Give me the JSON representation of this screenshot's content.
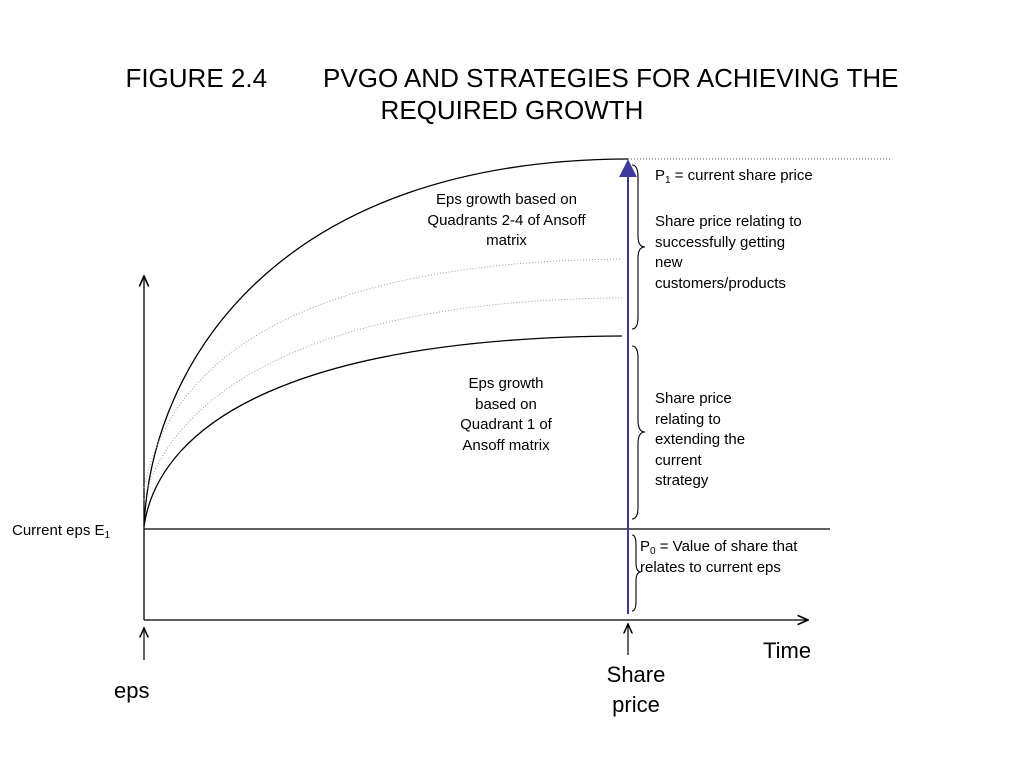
{
  "title": {
    "figure_number": "FIGURE 2.4",
    "line1": "PVGO AND STRATEGIES FOR ACHIEVING THE",
    "line2": "REQUIRED GROWTH"
  },
  "labels": {
    "p1_prefix": "P",
    "p1_sub": "1",
    "p1_rest": " = current share price",
    "quadrants_2_4": "Eps growth based on Quadrants 2-4  of Ansoff matrix",
    "share_price_new": "Share price relating to successfully getting new customers/products",
    "quadrant_1": "Eps growth based on Quadrant 1 of Ansoff matrix",
    "share_price_extend": "Share price relating to extending the current strategy",
    "current_eps_prefix": "Current eps E",
    "current_eps_sub": "1",
    "p0_prefix": "P",
    "p0_sub": "0",
    "p0_rest": " = Value of share that relates to current eps",
    "time": "Time",
    "share_price_axis": "Share price",
    "eps_axis": "eps"
  },
  "colors": {
    "share_price_arrow": "#3a3a9a",
    "lines": "#000000",
    "dotted": "#9a9a9a"
  }
}
